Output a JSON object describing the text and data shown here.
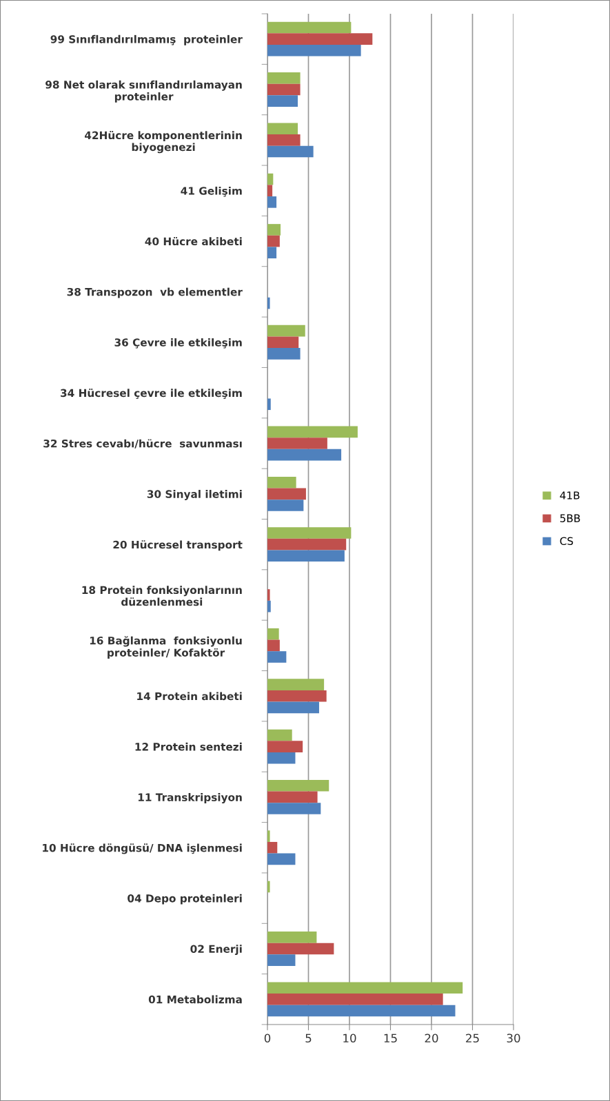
{
  "chart_data": {
    "type": "bar",
    "orientation": "horizontal",
    "categories": [
      "99 Sınıflandırılmamış  proteinler",
      "98 Net olarak sınıflandırılamayan\nproteinler",
      "42Hücre komponentlerinin\nbiyogenezi",
      "41 Gelişim",
      "40 Hücre akibeti",
      "38 Transpozon  vb elementler",
      "36 Çevre ile etkileşim",
      "34 Hücresel çevre ile etkileşim",
      "32 Stres cevabı/hücre  savunması",
      "30 Sinyal iletimi",
      "20 Hücresel transport",
      "18 Protein fonksiyonlarının\ndüzenlenmesi",
      "16 Bağlanma  fonksiyonlu\nproteinler/ Kofaktör",
      "14 Protein akibeti",
      "12 Protein sentezi",
      "11 Transkripsiyon",
      "10 Hücre döngüsü/ DNA işlenmesi",
      "04 Depo proteinleri",
      "02 Enerji",
      "01 Metabolizma"
    ],
    "series": [
      {
        "name": "41B",
        "color": "#9bbb59",
        "values": [
          10.2,
          4.0,
          3.7,
          0.7,
          1.6,
          null,
          4.6,
          0,
          11.0,
          3.5,
          10.2,
          0,
          1.4,
          6.9,
          3.0,
          7.5,
          0.3,
          0.3,
          6.0,
          23.8
        ]
      },
      {
        "name": "5BB",
        "color": "#c0504d",
        "values": [
          12.8,
          4.0,
          4.0,
          0.6,
          1.5,
          null,
          3.8,
          null,
          7.3,
          4.7,
          9.6,
          0.3,
          1.5,
          7.2,
          4.3,
          6.1,
          1.2,
          null,
          8.1,
          21.4
        ]
      },
      {
        "name": "CS",
        "color": "#4f81bd",
        "values": [
          11.4,
          3.7,
          5.6,
          1.1,
          1.1,
          0.3,
          4.0,
          0.4,
          9.0,
          4.4,
          9.4,
          0.4,
          2.3,
          6.3,
          3.4,
          6.5,
          3.4,
          0,
          3.4,
          22.9
        ]
      }
    ],
    "xlim": [
      0,
      30
    ],
    "xticks": [
      0,
      5,
      10,
      15,
      20,
      25,
      30
    ],
    "grid": "x",
    "legend": "right"
  }
}
